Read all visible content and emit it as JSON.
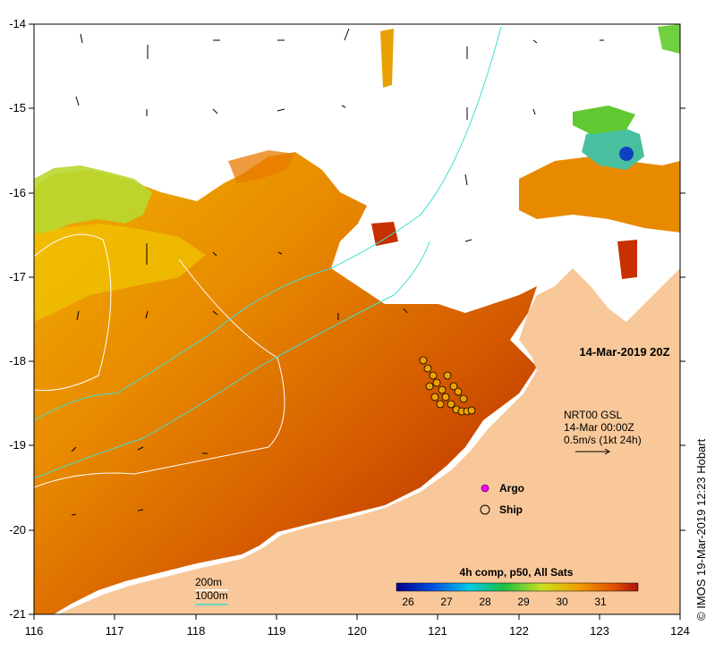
{
  "map": {
    "title": "14-Mar-2019 20Z",
    "credit": "© IMOS 19-Mar-2019 12:23 Hobart",
    "x_ticks": [
      "116",
      "117",
      "118",
      "119",
      "120",
      "121",
      "122",
      "123",
      "124"
    ],
    "y_ticks": [
      "-14",
      "-15",
      "-16",
      "-17",
      "-18",
      "-19",
      "-20",
      "-21"
    ],
    "current_info": {
      "line1": "NRT00 GSL",
      "line2": "14-Mar 00:00Z",
      "line3": "0.5m/s (1kt 24h)"
    },
    "legend": {
      "argo_label": "Argo",
      "ship_label": "Ship"
    },
    "depth_legend": {
      "contour_200": "200m",
      "contour_1000": "1000m",
      "color_200": "#ffffff",
      "color_1000": "#40e0d0"
    },
    "colorbar": {
      "title": "4h comp, p50, All Sats",
      "ticks": [
        "26",
        "27",
        "28",
        "29",
        "30",
        "31"
      ]
    },
    "colors": {
      "land": "#f8c89a",
      "sst_hot": "#b01e00",
      "sst_warm": "#e07800",
      "sst_mid": "#f0a000",
      "sst_cool": "#9ad230",
      "argo": "#ff00ff"
    }
  }
}
